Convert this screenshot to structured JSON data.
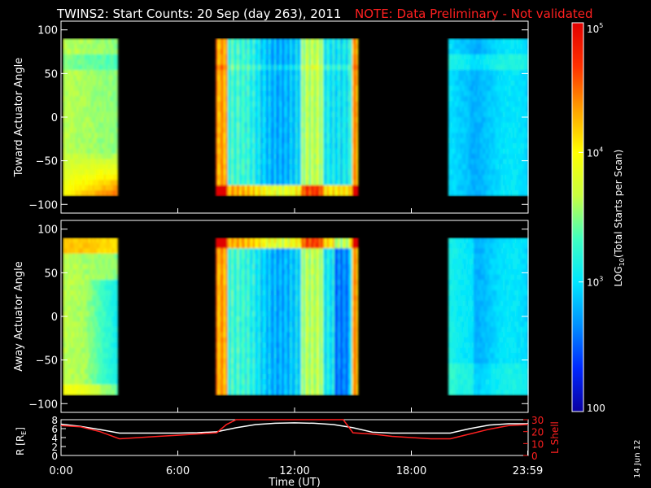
{
  "header": {
    "title": "TWINS2: Start Counts: 20 Sep (day 263), 2011",
    "note": "NOTE: Data Preliminary - Not validated",
    "note_color": "#ff2020"
  },
  "stamp": "14 Jun 12",
  "chart_data": [
    {
      "type": "heatmap",
      "panel": "toward",
      "ylabel": "Toward Actuator Angle",
      "ylim": [
        -110,
        110
      ],
      "yticks": [
        "100",
        "50",
        "0",
        "−50",
        "−100"
      ],
      "ytick_values": [
        100,
        50,
        0,
        -50,
        -100
      ],
      "xlim": [
        0,
        24
      ],
      "data_intervals_hours": [
        [
          0.1,
          2.9
        ],
        [
          7.95,
          15.2
        ],
        [
          19.9,
          24.0
        ]
      ],
      "value_range_log10": [
        2,
        5
      ]
    },
    {
      "type": "heatmap",
      "panel": "away",
      "ylabel": "Away Actuator Angle",
      "ylim": [
        -110,
        110
      ],
      "yticks": [
        "100",
        "50",
        "0",
        "−50",
        "−100"
      ],
      "ytick_values": [
        100,
        50,
        0,
        -50,
        -100
      ],
      "xlim": [
        0,
        24
      ],
      "data_intervals_hours": [
        [
          0.1,
          2.9
        ],
        [
          7.95,
          15.2
        ],
        [
          19.9,
          24.0
        ]
      ],
      "value_range_log10": [
        2,
        5
      ]
    },
    {
      "type": "line",
      "panel": "ephemeris",
      "ylabel_left": "R [R",
      "ylabel_left_sub": "E",
      "ylabel_left_close": "]",
      "ylabel_right": "L Shell",
      "ylim_left": [
        0,
        8
      ],
      "ylim_right": [
        0,
        30
      ],
      "yticks_left": [
        "8",
        "6",
        "4",
        "2",
        "0"
      ],
      "yticks_left_values": [
        8,
        6,
        4,
        2,
        0
      ],
      "yticks_right": [
        "30",
        "20",
        "10",
        "0"
      ],
      "yticks_right_values": [
        30,
        20,
        10,
        0
      ],
      "xlabel": "Time (UT)",
      "xticks": [
        "0:00",
        "6:00",
        "12:00",
        "18:00",
        "23:59"
      ],
      "xtick_values": [
        0,
        6,
        12,
        18,
        23.98
      ],
      "series": [
        {
          "axis": "left",
          "color": "#ffffff",
          "x": [
            0,
            1,
            2,
            3,
            4,
            5,
            6,
            7,
            8,
            9,
            10,
            11,
            12,
            13,
            14,
            15,
            16,
            17,
            18,
            19,
            20,
            21,
            22,
            23,
            24
          ],
          "y": [
            7.0,
            6.5,
            5.8,
            5.0,
            5.0,
            5.0,
            5.0,
            5.1,
            5.3,
            6.2,
            6.9,
            7.2,
            7.3,
            7.2,
            6.9,
            6.2,
            5.2,
            5.0,
            5.0,
            5.0,
            5.0,
            6.0,
            6.8,
            7.1,
            7.1
          ]
        },
        {
          "axis": "right",
          "color": "#ff2020",
          "x": [
            0,
            1,
            2,
            3,
            4,
            5,
            6,
            7,
            8,
            8.5,
            9,
            9.5,
            14.5,
            15,
            16,
            17,
            18,
            19,
            20,
            21,
            22,
            23,
            24
          ],
          "y": [
            25,
            24,
            20,
            14,
            15,
            16,
            17,
            18,
            19,
            26,
            32,
            40,
            40,
            19,
            18,
            16,
            15,
            14,
            14,
            18,
            22,
            25,
            26
          ]
        }
      ]
    }
  ],
  "colorbar": {
    "label_prefix": "LOG",
    "label_sub": "10",
    "label_suffix": "(Total Starts per Scan)",
    "ticks": [
      {
        "base": "10",
        "exp": "5",
        "value_log10": 5
      },
      {
        "base": "10",
        "exp": "4",
        "value_log10": 4
      },
      {
        "base": "10",
        "exp": "3",
        "value_log10": 3
      },
      {
        "base": "100",
        "exp": "",
        "value_log10": 2
      }
    ],
    "range_log10": [
      2,
      5
    ],
    "colors": [
      "#0a00a0",
      "#0028ff",
      "#0090ff",
      "#00e6ff",
      "#40ffc0",
      "#c8ff40",
      "#ffff00",
      "#ffa000",
      "#ff3000",
      "#e00000"
    ]
  }
}
